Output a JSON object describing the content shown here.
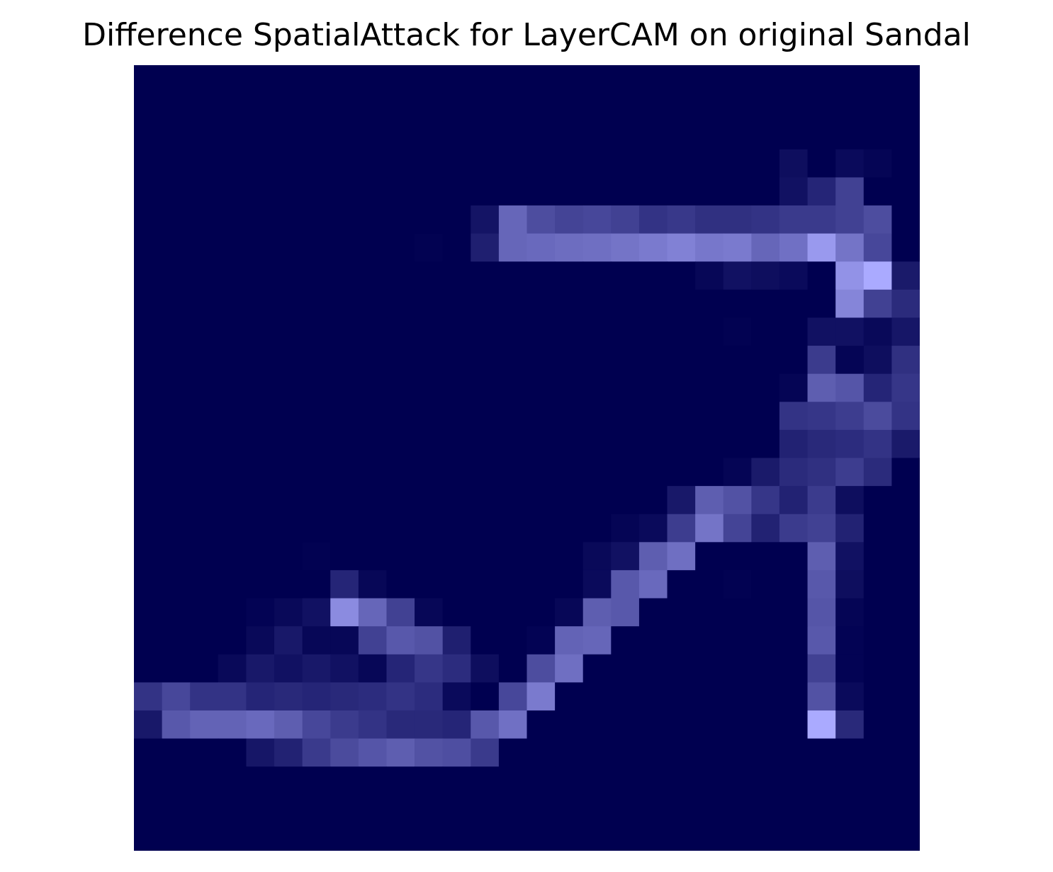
{
  "chart_data": {
    "type": "heatmap",
    "title": "Difference SpatialAttack for LayerCAM on original Sandal",
    "xlabel": "",
    "ylabel": "",
    "axes_visible": false,
    "grid": false,
    "legend": "none",
    "colormap": {
      "low": "#000050",
      "high": "#aaaaff"
    },
    "rows": 28,
    "cols": 28,
    "value_range": [
      0,
      1
    ],
    "values": [
      [
        0,
        0,
        0,
        0,
        0,
        0,
        0,
        0,
        0,
        0,
        0,
        0,
        0,
        0,
        0,
        0,
        0,
        0,
        0,
        0,
        0,
        0,
        0,
        0,
        0,
        0,
        0,
        0
      ],
      [
        0,
        0,
        0,
        0,
        0,
        0,
        0,
        0,
        0,
        0,
        0,
        0,
        0,
        0,
        0,
        0,
        0,
        0,
        0,
        0,
        0,
        0,
        0,
        0,
        0,
        0,
        0,
        0
      ],
      [
        0,
        0,
        0,
        0,
        0,
        0,
        0,
        0,
        0,
        0,
        0,
        0,
        0,
        0,
        0,
        0,
        0,
        0,
        0,
        0,
        0,
        0,
        0,
        0,
        0,
        0,
        0,
        0
      ],
      [
        0,
        0,
        0,
        0,
        0,
        0,
        0,
        0,
        0,
        0,
        0,
        0,
        0,
        0,
        0,
        0,
        0,
        0,
        0,
        0,
        0,
        0,
        0,
        0.08,
        0,
        0.06,
        0.03,
        0
      ],
      [
        0,
        0,
        0,
        0,
        0,
        0,
        0,
        0,
        0,
        0,
        0,
        0,
        0,
        0,
        0,
        0,
        0,
        0,
        0,
        0,
        0,
        0,
        0,
        0.1,
        0.22,
        0.38,
        0,
        0
      ],
      [
        0,
        0,
        0,
        0,
        0,
        0,
        0,
        0,
        0,
        0,
        0,
        0,
        0.12,
        0.6,
        0.45,
        0.4,
        0.42,
        0.38,
        0.3,
        0.33,
        0.28,
        0.28,
        0.3,
        0.34,
        0.34,
        0.38,
        0.45,
        0
      ],
      [
        0,
        0,
        0,
        0,
        0,
        0,
        0,
        0,
        0,
        0,
        0.01,
        0,
        0.18,
        0.6,
        0.62,
        0.64,
        0.65,
        0.68,
        0.72,
        0.76,
        0.7,
        0.72,
        0.6,
        0.66,
        0.9,
        0.68,
        0.42,
        0
      ],
      [
        0,
        0,
        0,
        0,
        0,
        0,
        0,
        0,
        0,
        0,
        0,
        0,
        0,
        0,
        0,
        0,
        0,
        0,
        0,
        0,
        0.04,
        0.1,
        0.08,
        0.06,
        0,
        0.86,
        1.0,
        0.15
      ],
      [
        0,
        0,
        0,
        0,
        0,
        0,
        0,
        0,
        0,
        0,
        0,
        0,
        0,
        0,
        0,
        0,
        0,
        0,
        0,
        0,
        0,
        0,
        0,
        0,
        0,
        0.78,
        0.38,
        0.25
      ],
      [
        0,
        0,
        0,
        0,
        0,
        0,
        0,
        0,
        0,
        0,
        0,
        0,
        0,
        0,
        0,
        0,
        0,
        0,
        0,
        0,
        0,
        0.01,
        0,
        0,
        0.1,
        0.1,
        0.05,
        0.13
      ],
      [
        0,
        0,
        0,
        0,
        0,
        0,
        0,
        0,
        0,
        0,
        0,
        0,
        0,
        0,
        0,
        0,
        0,
        0,
        0,
        0,
        0,
        0,
        0,
        0,
        0.35,
        0.03,
        0.08,
        0.28
      ],
      [
        0,
        0,
        0,
        0,
        0,
        0,
        0,
        0,
        0,
        0,
        0,
        0,
        0,
        0,
        0,
        0,
        0,
        0,
        0,
        0,
        0,
        0,
        0,
        0.03,
        0.55,
        0.5,
        0.22,
        0.32
      ],
      [
        0,
        0,
        0,
        0,
        0,
        0,
        0,
        0,
        0,
        0,
        0,
        0,
        0,
        0,
        0,
        0,
        0,
        0,
        0,
        0,
        0,
        0,
        0,
        0.3,
        0.32,
        0.36,
        0.44,
        0.3
      ],
      [
        0,
        0,
        0,
        0,
        0,
        0,
        0,
        0,
        0,
        0,
        0,
        0,
        0,
        0,
        0,
        0,
        0,
        0,
        0,
        0,
        0,
        0,
        0,
        0.2,
        0.24,
        0.26,
        0.3,
        0.15
      ],
      [
        0,
        0,
        0,
        0,
        0,
        0,
        0,
        0,
        0,
        0,
        0,
        0,
        0,
        0,
        0,
        0,
        0,
        0,
        0,
        0,
        0,
        0.03,
        0.15,
        0.25,
        0.28,
        0.36,
        0.25,
        0
      ],
      [
        0,
        0,
        0,
        0,
        0,
        0,
        0,
        0,
        0,
        0,
        0,
        0,
        0,
        0,
        0,
        0,
        0,
        0,
        0,
        0.14,
        0.55,
        0.48,
        0.32,
        0.2,
        0.35,
        0.08,
        0,
        0
      ],
      [
        0,
        0,
        0,
        0,
        0,
        0,
        0,
        0,
        0,
        0,
        0,
        0,
        0,
        0,
        0,
        0,
        0,
        0.03,
        0.06,
        0.36,
        0.68,
        0.4,
        0.2,
        0.35,
        0.38,
        0.2,
        0,
        0
      ],
      [
        0,
        0,
        0,
        0,
        0,
        0,
        0.01,
        0,
        0,
        0,
        0,
        0,
        0,
        0,
        0,
        0,
        0.05,
        0.1,
        0.55,
        0.65,
        0,
        0,
        0,
        0,
        0.55,
        0.1,
        0,
        0
      ],
      [
        0,
        0,
        0,
        0,
        0,
        0,
        0,
        0.22,
        0.04,
        0,
        0,
        0,
        0,
        0,
        0,
        0,
        0.06,
        0.52,
        0.62,
        0,
        0,
        0.01,
        0,
        0,
        0.52,
        0.08,
        0,
        0
      ],
      [
        0,
        0,
        0,
        0,
        0.02,
        0.05,
        0.1,
        0.82,
        0.6,
        0.38,
        0.04,
        0,
        0,
        0,
        0,
        0.04,
        0.55,
        0.52,
        0,
        0,
        0,
        0,
        0,
        0,
        0.5,
        0.03,
        0,
        0
      ],
      [
        0,
        0,
        0,
        0,
        0.05,
        0.14,
        0.04,
        0.04,
        0.38,
        0.52,
        0.48,
        0.18,
        0,
        0,
        0.02,
        0.58,
        0.6,
        0,
        0,
        0,
        0,
        0,
        0,
        0,
        0.52,
        0.02,
        0,
        0
      ],
      [
        0,
        0,
        0,
        0.05,
        0.14,
        0.1,
        0.14,
        0.1,
        0.04,
        0.22,
        0.32,
        0.26,
        0.08,
        0,
        0.45,
        0.65,
        0,
        0,
        0,
        0,
        0,
        0,
        0,
        0,
        0.38,
        0.02,
        0,
        0
      ],
      [
        0.3,
        0.42,
        0.3,
        0.3,
        0.22,
        0.24,
        0.22,
        0.24,
        0.26,
        0.3,
        0.26,
        0.06,
        0,
        0.42,
        0.72,
        0,
        0,
        0,
        0,
        0,
        0,
        0,
        0,
        0,
        0.48,
        0.06,
        0,
        0
      ],
      [
        0.14,
        0.52,
        0.58,
        0.58,
        0.62,
        0.55,
        0.42,
        0.35,
        0.3,
        0.24,
        0.24,
        0.22,
        0.52,
        0.66,
        0,
        0,
        0,
        0,
        0,
        0,
        0,
        0,
        0,
        0,
        1.0,
        0.24,
        0,
        0
      ],
      [
        0,
        0,
        0,
        0,
        0.13,
        0.2,
        0.34,
        0.44,
        0.5,
        0.55,
        0.48,
        0.46,
        0.34,
        0,
        0,
        0,
        0,
        0,
        0,
        0,
        0,
        0,
        0,
        0,
        0,
        0,
        0,
        0
      ],
      [
        0,
        0,
        0,
        0,
        0,
        0,
        0,
        0,
        0,
        0,
        0,
        0,
        0,
        0,
        0,
        0,
        0,
        0,
        0,
        0,
        0,
        0,
        0,
        0,
        0,
        0,
        0,
        0
      ],
      [
        0,
        0,
        0,
        0,
        0,
        0,
        0,
        0,
        0,
        0,
        0,
        0,
        0,
        0,
        0,
        0,
        0,
        0,
        0,
        0,
        0,
        0,
        0,
        0,
        0,
        0,
        0,
        0
      ],
      [
        0,
        0,
        0,
        0,
        0,
        0,
        0,
        0,
        0,
        0,
        0,
        0,
        0,
        0,
        0,
        0,
        0,
        0,
        0,
        0,
        0,
        0,
        0,
        0,
        0,
        0,
        0,
        0
      ]
    ]
  }
}
